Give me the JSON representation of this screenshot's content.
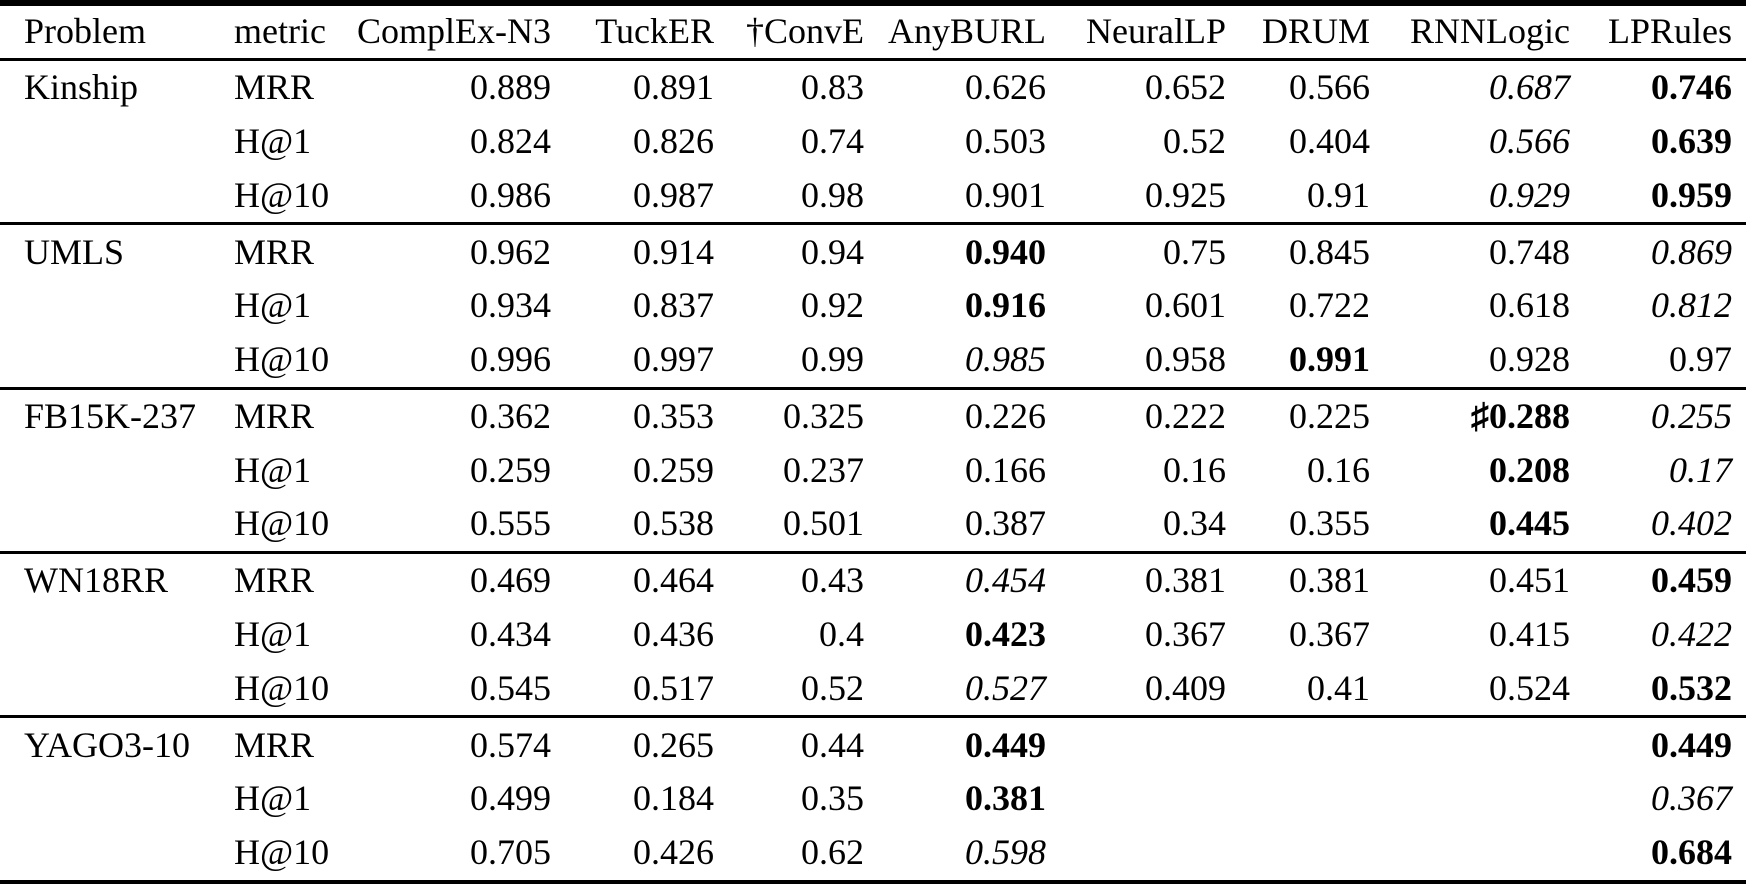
{
  "table": {
    "header": [
      "Problem",
      "metric",
      "ComplEx-N3",
      "TuckER",
      "†ConvE",
      "AnyBURL",
      "NeuralLP",
      "DRUM",
      "RNNLogic",
      "LPRules"
    ],
    "groups": [
      {
        "problem": "Kinship",
        "rows": [
          {
            "metric": "MRR",
            "cells": [
              {
                "t": "0.889",
                "s": "n"
              },
              {
                "t": "0.891",
                "s": "n"
              },
              {
                "t": "0.83",
                "s": "n"
              },
              {
                "t": "0.626",
                "s": "n"
              },
              {
                "t": "0.652",
                "s": "n"
              },
              {
                "t": "0.566",
                "s": "n"
              },
              {
                "t": "0.687",
                "s": "i"
              },
              {
                "t": "0.746",
                "s": "b"
              }
            ]
          },
          {
            "metric": "H@1",
            "cells": [
              {
                "t": "0.824",
                "s": "n"
              },
              {
                "t": "0.826",
                "s": "n"
              },
              {
                "t": "0.74",
                "s": "n"
              },
              {
                "t": "0.503",
                "s": "n"
              },
              {
                "t": "0.52",
                "s": "n"
              },
              {
                "t": "0.404",
                "s": "n"
              },
              {
                "t": "0.566",
                "s": "i"
              },
              {
                "t": "0.639",
                "s": "b"
              }
            ]
          },
          {
            "metric": "H@10",
            "cells": [
              {
                "t": "0.986",
                "s": "n"
              },
              {
                "t": "0.987",
                "s": "n"
              },
              {
                "t": "0.98",
                "s": "n"
              },
              {
                "t": "0.901",
                "s": "n"
              },
              {
                "t": "0.925",
                "s": "n"
              },
              {
                "t": "0.91",
                "s": "n"
              },
              {
                "t": "0.929",
                "s": "i"
              },
              {
                "t": "0.959",
                "s": "b"
              }
            ]
          }
        ]
      },
      {
        "problem": "UMLS",
        "rows": [
          {
            "metric": "MRR",
            "cells": [
              {
                "t": "0.962",
                "s": "n"
              },
              {
                "t": "0.914",
                "s": "n"
              },
              {
                "t": "0.94",
                "s": "n"
              },
              {
                "t": "0.940",
                "s": "b"
              },
              {
                "t": "0.75",
                "s": "n"
              },
              {
                "t": "0.845",
                "s": "n"
              },
              {
                "t": "0.748",
                "s": "n"
              },
              {
                "t": "0.869",
                "s": "i"
              }
            ]
          },
          {
            "metric": "H@1",
            "cells": [
              {
                "t": "0.934",
                "s": "n"
              },
              {
                "t": "0.837",
                "s": "n"
              },
              {
                "t": "0.92",
                "s": "n"
              },
              {
                "t": "0.916",
                "s": "b"
              },
              {
                "t": "0.601",
                "s": "n"
              },
              {
                "t": "0.722",
                "s": "n"
              },
              {
                "t": "0.618",
                "s": "n"
              },
              {
                "t": "0.812",
                "s": "i"
              }
            ]
          },
          {
            "metric": "H@10",
            "cells": [
              {
                "t": "0.996",
                "s": "n"
              },
              {
                "t": "0.997",
                "s": "n"
              },
              {
                "t": "0.99",
                "s": "n"
              },
              {
                "t": "0.985",
                "s": "i"
              },
              {
                "t": "0.958",
                "s": "n"
              },
              {
                "t": "0.991",
                "s": "b"
              },
              {
                "t": "0.928",
                "s": "n"
              },
              {
                "t": "0.97",
                "s": "n"
              }
            ]
          }
        ]
      },
      {
        "problem": "FB15K-237",
        "rows": [
          {
            "metric": "MRR",
            "cells": [
              {
                "t": "0.362",
                "s": "n"
              },
              {
                "t": "0.353",
                "s": "n"
              },
              {
                "t": "0.325",
                "s": "n"
              },
              {
                "t": "0.226",
                "s": "n"
              },
              {
                "t": "0.222",
                "s": "n"
              },
              {
                "t": "0.225",
                "s": "n"
              },
              {
                "t": "♯0.288",
                "s": "b"
              },
              {
                "t": "0.255",
                "s": "i"
              }
            ]
          },
          {
            "metric": "H@1",
            "cells": [
              {
                "t": "0.259",
                "s": "n"
              },
              {
                "t": "0.259",
                "s": "n"
              },
              {
                "t": "0.237",
                "s": "n"
              },
              {
                "t": "0.166",
                "s": "n"
              },
              {
                "t": "0.16",
                "s": "n"
              },
              {
                "t": "0.16",
                "s": "n"
              },
              {
                "t": "0.208",
                "s": "b"
              },
              {
                "t": "0.17",
                "s": "i"
              }
            ]
          },
          {
            "metric": "H@10",
            "cells": [
              {
                "t": "0.555",
                "s": "n"
              },
              {
                "t": "0.538",
                "s": "n"
              },
              {
                "t": "0.501",
                "s": "n"
              },
              {
                "t": "0.387",
                "s": "n"
              },
              {
                "t": "0.34",
                "s": "n"
              },
              {
                "t": "0.355",
                "s": "n"
              },
              {
                "t": "0.445",
                "s": "b"
              },
              {
                "t": "0.402",
                "s": "i"
              }
            ]
          }
        ]
      },
      {
        "problem": "WN18RR",
        "rows": [
          {
            "metric": "MRR",
            "cells": [
              {
                "t": "0.469",
                "s": "n"
              },
              {
                "t": "0.464",
                "s": "n"
              },
              {
                "t": "0.43",
                "s": "n"
              },
              {
                "t": "0.454",
                "s": "i"
              },
              {
                "t": "0.381",
                "s": "n"
              },
              {
                "t": "0.381",
                "s": "n"
              },
              {
                "t": "0.451",
                "s": "n"
              },
              {
                "t": "0.459",
                "s": "b"
              }
            ]
          },
          {
            "metric": "H@1",
            "cells": [
              {
                "t": "0.434",
                "s": "n"
              },
              {
                "t": "0.436",
                "s": "n"
              },
              {
                "t": "0.4",
                "s": "n"
              },
              {
                "t": "0.423",
                "s": "b"
              },
              {
                "t": "0.367",
                "s": "n"
              },
              {
                "t": "0.367",
                "s": "n"
              },
              {
                "t": "0.415",
                "s": "n"
              },
              {
                "t": "0.422",
                "s": "i"
              }
            ]
          },
          {
            "metric": "H@10",
            "cells": [
              {
                "t": "0.545",
                "s": "n"
              },
              {
                "t": "0.517",
                "s": "n"
              },
              {
                "t": "0.52",
                "s": "n"
              },
              {
                "t": "0.527",
                "s": "i"
              },
              {
                "t": "0.409",
                "s": "n"
              },
              {
                "t": "0.41",
                "s": "n"
              },
              {
                "t": "0.524",
                "s": "n"
              },
              {
                "t": "0.532",
                "s": "b"
              }
            ]
          }
        ]
      },
      {
        "problem": "YAGO3-10",
        "rows": [
          {
            "metric": "MRR",
            "cells": [
              {
                "t": "0.574",
                "s": "n"
              },
              {
                "t": "0.265",
                "s": "n"
              },
              {
                "t": "0.44",
                "s": "n"
              },
              {
                "t": "0.449",
                "s": "b"
              },
              {
                "t": "",
                "s": "n"
              },
              {
                "t": "",
                "s": "n"
              },
              {
                "t": "",
                "s": "n"
              },
              {
                "t": "0.449",
                "s": "b"
              }
            ]
          },
          {
            "metric": "H@1",
            "cells": [
              {
                "t": "0.499",
                "s": "n"
              },
              {
                "t": "0.184",
                "s": "n"
              },
              {
                "t": "0.35",
                "s": "n"
              },
              {
                "t": "0.381",
                "s": "b"
              },
              {
                "t": "",
                "s": "n"
              },
              {
                "t": "",
                "s": "n"
              },
              {
                "t": "",
                "s": "n"
              },
              {
                "t": "0.367",
                "s": "i"
              }
            ]
          },
          {
            "metric": "H@10",
            "cells": [
              {
                "t": "0.705",
                "s": "n"
              },
              {
                "t": "0.426",
                "s": "n"
              },
              {
                "t": "0.62",
                "s": "n"
              },
              {
                "t": "0.598",
                "s": "i"
              },
              {
                "t": "",
                "s": "n"
              },
              {
                "t": "",
                "s": "n"
              },
              {
                "t": "",
                "s": "n"
              },
              {
                "t": "0.684",
                "s": "b"
              }
            ]
          }
        ]
      }
    ],
    "style_legend": {
      "b": "bold",
      "i": "italic",
      "n": "normal"
    }
  },
  "chart_data": {
    "type": "table",
    "columns": [
      "Problem",
      "metric",
      "ComplEx-N3",
      "TuckER",
      "†ConvE",
      "AnyBURL",
      "NeuralLP",
      "DRUM",
      "RNNLogic",
      "LPRules"
    ],
    "rows": [
      [
        "Kinship",
        "MRR",
        "0.889",
        "0.891",
        "0.83",
        "0.626",
        "0.652",
        "0.566",
        "0.687",
        "0.746"
      ],
      [
        "",
        "H@1",
        "0.824",
        "0.826",
        "0.74",
        "0.503",
        "0.52",
        "0.404",
        "0.566",
        "0.639"
      ],
      [
        "",
        "H@10",
        "0.986",
        "0.987",
        "0.98",
        "0.901",
        "0.925",
        "0.91",
        "0.929",
        "0.959"
      ],
      [
        "UMLS",
        "MRR",
        "0.962",
        "0.914",
        "0.94",
        "0.940",
        "0.75",
        "0.845",
        "0.748",
        "0.869"
      ],
      [
        "",
        "H@1",
        "0.934",
        "0.837",
        "0.92",
        "0.916",
        "0.601",
        "0.722",
        "0.618",
        "0.812"
      ],
      [
        "",
        "H@10",
        "0.996",
        "0.997",
        "0.99",
        "0.985",
        "0.958",
        "0.991",
        "0.928",
        "0.97"
      ],
      [
        "FB15K-237",
        "MRR",
        "0.362",
        "0.353",
        "0.325",
        "0.226",
        "0.222",
        "0.225",
        "♯0.288",
        "0.255"
      ],
      [
        "",
        "H@1",
        "0.259",
        "0.259",
        "0.237",
        "0.166",
        "0.16",
        "0.16",
        "0.208",
        "0.17"
      ],
      [
        "",
        "H@10",
        "0.555",
        "0.538",
        "0.501",
        "0.387",
        "0.34",
        "0.355",
        "0.445",
        "0.402"
      ],
      [
        "WN18RR",
        "MRR",
        "0.469",
        "0.464",
        "0.43",
        "0.454",
        "0.381",
        "0.381",
        "0.451",
        "0.459"
      ],
      [
        "",
        "H@1",
        "0.434",
        "0.436",
        "0.4",
        "0.423",
        "0.367",
        "0.367",
        "0.415",
        "0.422"
      ],
      [
        "",
        "H@10",
        "0.545",
        "0.517",
        "0.52",
        "0.527",
        "0.409",
        "0.41",
        "0.524",
        "0.532"
      ],
      [
        "YAGO3-10",
        "MRR",
        "0.574",
        "0.265",
        "0.44",
        "0.449",
        "",
        "",
        "",
        "0.449"
      ],
      [
        "",
        "H@1",
        "0.499",
        "0.184",
        "0.35",
        "0.381",
        "",
        "",
        "",
        "0.367"
      ],
      [
        "",
        "H@10",
        "0.705",
        "0.426",
        "0.62",
        "0.598",
        "",
        "",
        "",
        "0.684"
      ]
    ]
  }
}
